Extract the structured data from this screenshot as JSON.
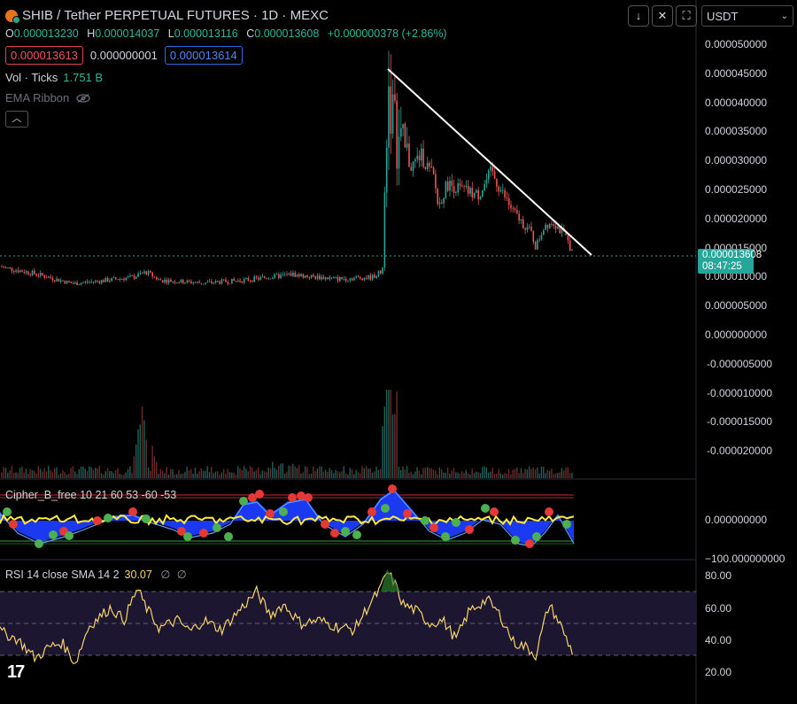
{
  "header": {
    "symbol_title": "SHIB / Tether PERPETUAL FUTURES · 1D · MEXC",
    "ohlc": {
      "o_label": "O",
      "o": "0.000013230",
      "h_label": "H",
      "h": "0.000014037",
      "l_label": "L",
      "l": "0.000013116",
      "c_label": "C",
      "c": "0.000013608",
      "change": "+0.000000378 (+2.86%)"
    },
    "sell_price": "0.000013613",
    "spread": "0.000000001",
    "buy_price": "0.000013614",
    "volume_label": "Vol · Ticks",
    "volume_value": "1.751 B",
    "ema_label": "EMA Ribbon"
  },
  "toolbar": {
    "currency": "USDT"
  },
  "price_axis": {
    "labels": [
      "0.000050000",
      "0.000045000",
      "0.000040000",
      "0.000035000",
      "0.000030000",
      "0.000025000",
      "0.000020000",
      "0.000015000",
      "0.000010000",
      "0.000005000",
      "0.000000000",
      "-0.000005000",
      "-0.000010000",
      "-0.000015000",
      "-0.000020000"
    ],
    "current_price": "0.000013608",
    "countdown": "08:47:25"
  },
  "cipher": {
    "label": "Cipher_B_free 10 21 60 53 -60 -53",
    "axis_labels": [
      "0.000000000",
      "−100.000000000"
    ]
  },
  "rsi": {
    "label": "RSI 14 close SMA 14 2",
    "value": "30.07",
    "extra1": "∅",
    "extra2": "∅",
    "axis_labels": [
      "80.00",
      "60.00",
      "40.00",
      "20.00"
    ]
  },
  "colors": {
    "up": "#26a69a",
    "down": "#ef5350",
    "rsi_line": "#f5d36a",
    "trendline": "#ffffff"
  },
  "icons": [
    "download-icon",
    "close-icon",
    "fullscreen-icon",
    "eye-off-icon",
    "chevron-up-icon",
    "chevron-down-icon"
  ],
  "chart_data": {
    "type": "line",
    "price_close_series_approx": [
      1.15e-05,
      1.08e-05,
      9.5e-06,
      8.8e-06,
      9.2e-06,
      9.8e-06,
      1.05e-05,
      9.3e-06,
      8.7e-06,
      9e-06,
      9.3e-06,
      9.8e-06,
      1.06e-05,
      9.9e-06,
      9.6e-06,
      1.1e-05,
      4.4e-05,
      3.3e-05,
      2.9e-05,
      2.8e-05,
      2.2e-05,
      2.6e-05,
      2.5e-05,
      2.4e-05,
      2.8e-05,
      2.4e-05,
      2e-05,
      1.75e-05,
      1.6e-05,
      1.95e-05,
      1.75e-05,
      1.36e-05
    ],
    "rsi_series_approx": [
      45,
      40,
      28,
      35,
      38,
      48,
      60,
      52,
      72,
      55,
      47,
      52,
      45,
      58,
      70,
      55,
      60,
      50,
      52,
      48,
      78,
      85,
      60,
      55,
      52,
      65,
      58,
      50,
      45,
      40,
      30,
      50,
      62,
      50,
      40,
      30
    ],
    "ylim": [
      -2.2e-05,
      5.2e-05
    ]
  }
}
